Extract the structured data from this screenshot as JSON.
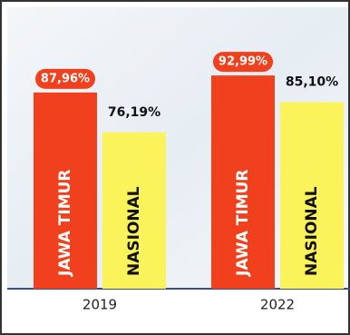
{
  "chart_data": {
    "type": "bar",
    "categories": [
      "2019",
      "2022"
    ],
    "series": [
      {
        "name": "JAWA TIMUR",
        "color": "#f0401e",
        "values": [
          87.96,
          92.99
        ],
        "value_labels": [
          "87,96%",
          "92,99%"
        ]
      },
      {
        "name": "NASIONAL",
        "color": "#fbf35a",
        "values": [
          76.19,
          85.1
        ],
        "value_labels": [
          "76,19%",
          "85,10%"
        ]
      }
    ],
    "ylim": [
      30,
      100
    ]
  }
}
